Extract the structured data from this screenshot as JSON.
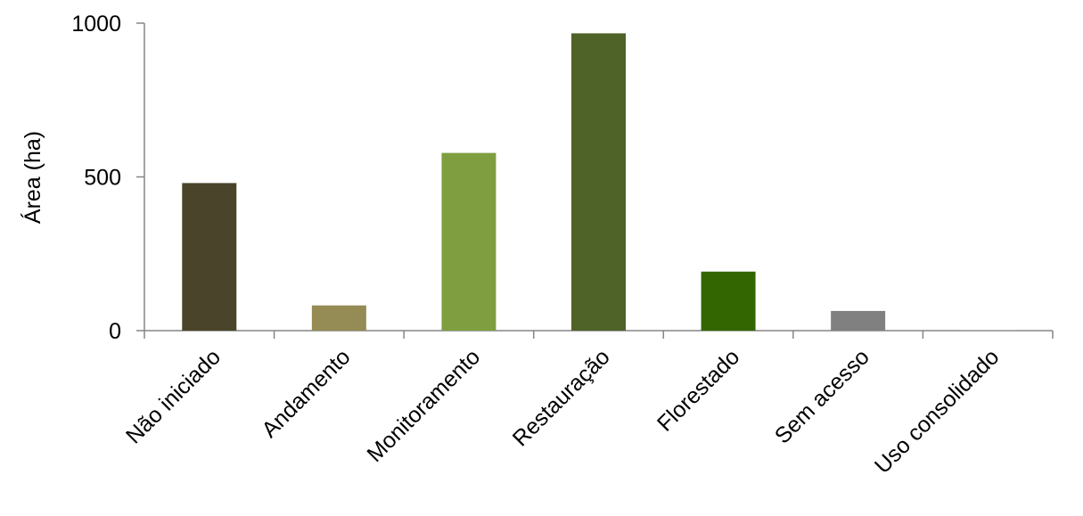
{
  "chart_data": {
    "type": "bar",
    "title": "",
    "xlabel": "",
    "ylabel": "Área (ha)",
    "ylim": [
      0,
      1000
    ],
    "yticks": [
      0,
      500,
      1000
    ],
    "grid": false,
    "legend": "none",
    "categories": [
      "Não iniciado",
      "Andamento",
      "Monitoramento",
      "Restauração",
      "Florestado",
      "Sem acesso",
      "Uso consolidado"
    ],
    "values": [
      480,
      82,
      578,
      967,
      192,
      64,
      2
    ],
    "colors": [
      "#4A452A",
      "#958B55",
      "#7F9E40",
      "#4F6228",
      "#336600",
      "#808080",
      "#A6A6A6"
    ]
  }
}
